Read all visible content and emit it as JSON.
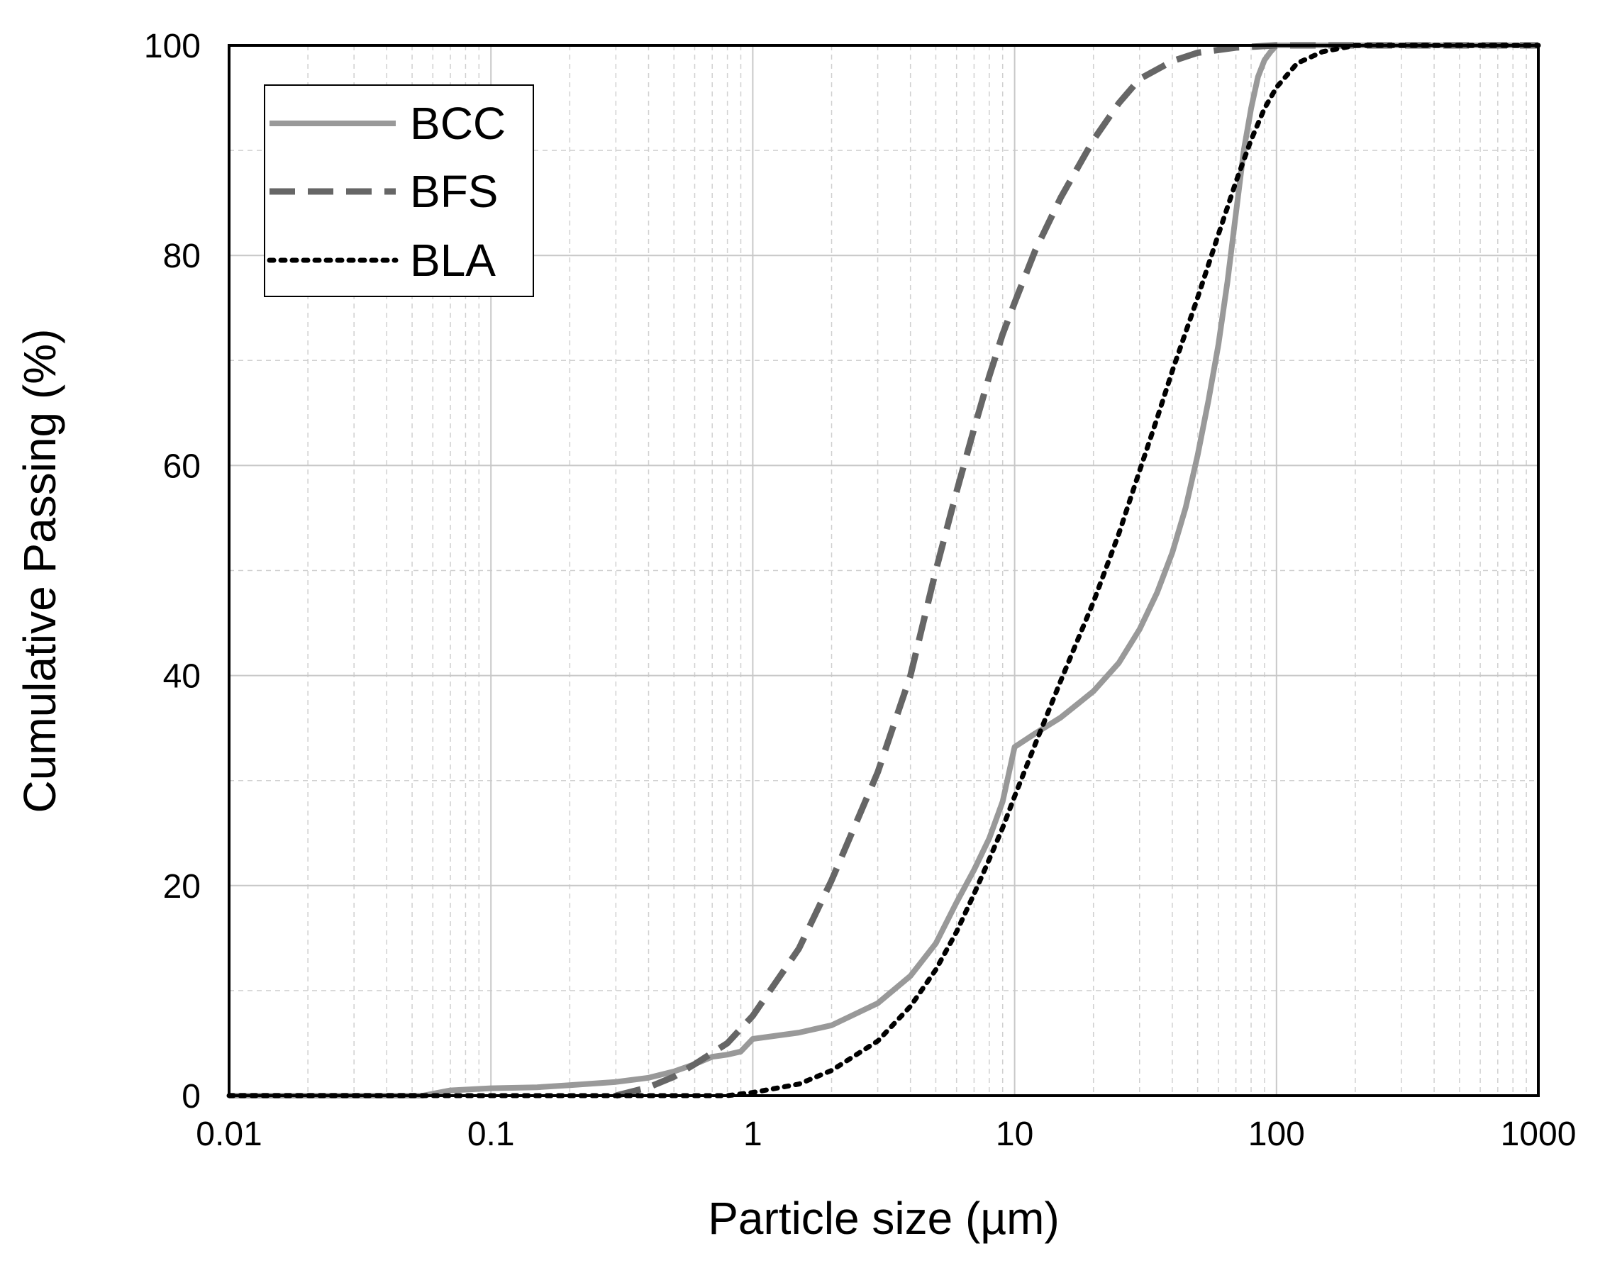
{
  "chart_data": {
    "type": "line",
    "title": "",
    "xlabel": "Particle size (µm)",
    "ylabel": "Cumulative Passing (%)",
    "xscale": "log",
    "xlim": [
      0.01,
      1000
    ],
    "ylim": [
      0,
      100
    ],
    "grid": true,
    "legend_position": "top-left",
    "x_ticks": [
      {
        "value": 0.01,
        "label": "0.01"
      },
      {
        "value": 0.1,
        "label": "0.1"
      },
      {
        "value": 1,
        "label": "1"
      },
      {
        "value": 10,
        "label": "10"
      },
      {
        "value": 100,
        "label": "100"
      },
      {
        "value": 1000,
        "label": "1000"
      }
    ],
    "y_ticks": [
      {
        "value": 0,
        "label": "0"
      },
      {
        "value": 20,
        "label": "20"
      },
      {
        "value": 40,
        "label": "40"
      },
      {
        "value": 60,
        "label": "60"
      },
      {
        "value": 80,
        "label": "80"
      },
      {
        "value": 100,
        "label": "100"
      }
    ],
    "series": [
      {
        "name": "BCC",
        "color": "#999999",
        "style": "solid",
        "points": [
          [
            0.01,
            0
          ],
          [
            0.055,
            0
          ],
          [
            0.07,
            0.5
          ],
          [
            0.1,
            0.7
          ],
          [
            0.15,
            0.8
          ],
          [
            0.2,
            1.0
          ],
          [
            0.3,
            1.3
          ],
          [
            0.4,
            1.7
          ],
          [
            0.5,
            2.3
          ],
          [
            0.6,
            3.0
          ],
          [
            0.7,
            3.7
          ],
          [
            0.8,
            3.9
          ],
          [
            0.9,
            4.2
          ],
          [
            1.0,
            5.4
          ],
          [
            1.5,
            6.0
          ],
          [
            2.0,
            6.7
          ],
          [
            3.0,
            8.8
          ],
          [
            4.0,
            11.4
          ],
          [
            5.0,
            14.5
          ],
          [
            6.0,
            18.4
          ],
          [
            7.0,
            21.5
          ],
          [
            8.0,
            24.5
          ],
          [
            9.0,
            28.0
          ],
          [
            10.0,
            33.2
          ],
          [
            12.0,
            34.5
          ],
          [
            15.0,
            36.0
          ],
          [
            20.0,
            38.5
          ],
          [
            25.0,
            41.2
          ],
          [
            30.0,
            44.4
          ],
          [
            35.0,
            47.9
          ],
          [
            40.0,
            51.7
          ],
          [
            45.0,
            56.0
          ],
          [
            50.0,
            61.0
          ],
          [
            55.0,
            66.2
          ],
          [
            60.0,
            71.5
          ],
          [
            65.0,
            77.5
          ],
          [
            70.0,
            84.0
          ],
          [
            75.0,
            90.0
          ],
          [
            80.0,
            94.0
          ],
          [
            85.0,
            97.0
          ],
          [
            90.0,
            98.6
          ],
          [
            95.0,
            99.4
          ],
          [
            100.0,
            100
          ],
          [
            1000,
            100
          ]
        ]
      },
      {
        "name": "BFS",
        "color": "#666666",
        "style": "dashed",
        "points": [
          [
            0.3,
            0
          ],
          [
            0.4,
            0.8
          ],
          [
            0.5,
            1.8
          ],
          [
            0.6,
            3.0
          ],
          [
            0.8,
            5.0
          ],
          [
            1.0,
            7.6
          ],
          [
            1.5,
            14.0
          ],
          [
            2.0,
            20.5
          ],
          [
            3.0,
            30.8
          ],
          [
            4.0,
            40.0
          ],
          [
            5.0,
            50.0
          ],
          [
            6.0,
            57.5
          ],
          [
            7.0,
            63.5
          ],
          [
            8.0,
            68.5
          ],
          [
            9.0,
            72.5
          ],
          [
            10.0,
            75.5
          ],
          [
            12.0,
            80.5
          ],
          [
            15.0,
            85.5
          ],
          [
            20.0,
            91.0
          ],
          [
            25.0,
            94.5
          ],
          [
            30.0,
            96.8
          ],
          [
            40.0,
            98.5
          ],
          [
            50.0,
            99.3
          ],
          [
            70.0,
            99.8
          ],
          [
            100.0,
            100
          ],
          [
            1000,
            100
          ]
        ]
      },
      {
        "name": "BLA",
        "color": "#000000",
        "style": "dotted",
        "points": [
          [
            0.01,
            0
          ],
          [
            0.8,
            0
          ],
          [
            1.0,
            0.3
          ],
          [
            1.5,
            1.1
          ],
          [
            2.0,
            2.4
          ],
          [
            3.0,
            5.2
          ],
          [
            4.0,
            8.5
          ],
          [
            5.0,
            12.0
          ],
          [
            6.0,
            15.6
          ],
          [
            7.0,
            19.2
          ],
          [
            8.0,
            22.5
          ],
          [
            9.0,
            25.5
          ],
          [
            10.0,
            28.5
          ],
          [
            12.0,
            33.5
          ],
          [
            15.0,
            39.5
          ],
          [
            20.0,
            47.0
          ],
          [
            25.0,
            53.5
          ],
          [
            30.0,
            59.5
          ],
          [
            35.0,
            64.5
          ],
          [
            40.0,
            69.0
          ],
          [
            50.0,
            76.0
          ],
          [
            60.0,
            82.0
          ],
          [
            70.0,
            87.0
          ],
          [
            80.0,
            91.0
          ],
          [
            90.0,
            94.0
          ],
          [
            100.0,
            96.0
          ],
          [
            120.0,
            98.3
          ],
          [
            150.0,
            99.4
          ],
          [
            200.0,
            100
          ],
          [
            1000,
            100
          ]
        ]
      }
    ]
  }
}
